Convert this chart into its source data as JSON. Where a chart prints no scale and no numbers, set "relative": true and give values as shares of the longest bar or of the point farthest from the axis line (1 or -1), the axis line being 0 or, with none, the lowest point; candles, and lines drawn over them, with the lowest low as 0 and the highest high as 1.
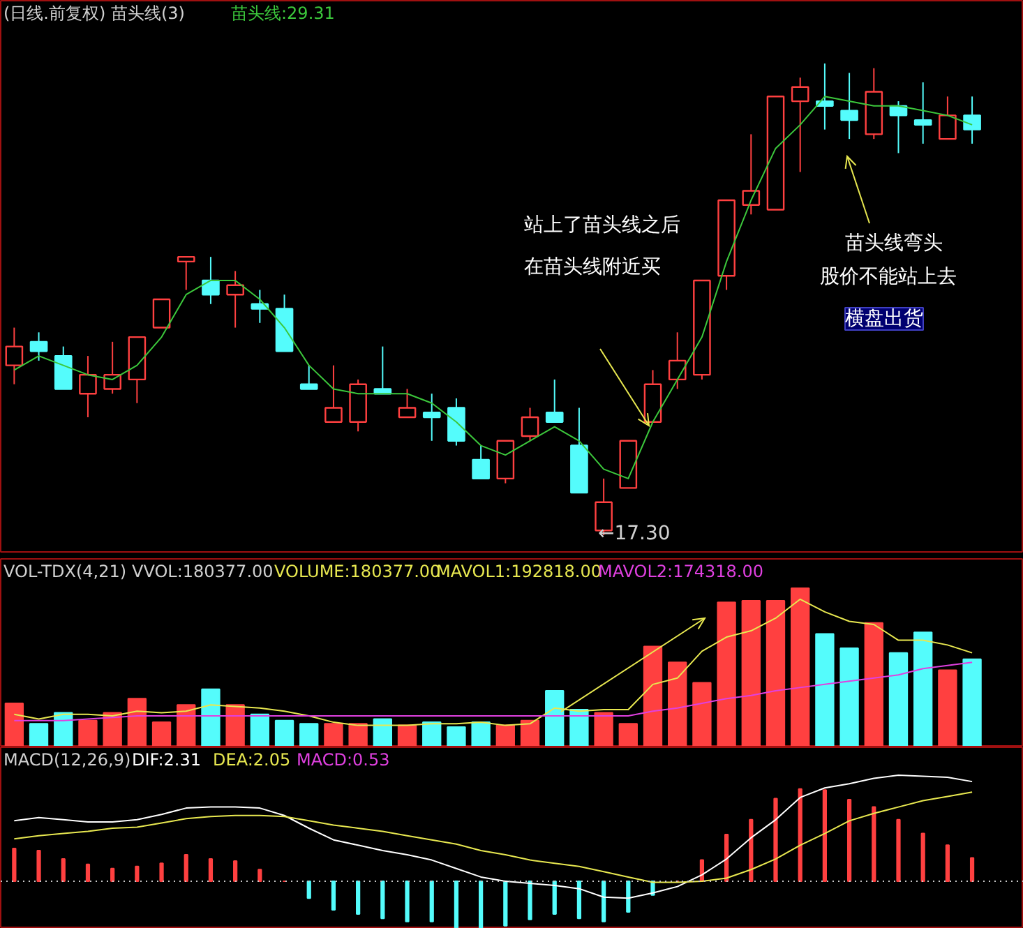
{
  "chart_data": [
    {
      "type": "candlestick",
      "title": "(日线.前复权) 苗头线(3)",
      "relative": true,
      "categories": [
        null,
        null,
        null,
        null,
        null,
        null,
        null,
        null,
        null,
        null,
        null,
        null,
        null,
        null,
        null,
        null,
        null,
        null,
        null,
        null,
        null,
        null,
        null,
        null,
        null,
        null,
        null,
        null,
        null,
        null,
        null,
        null,
        null,
        null,
        null,
        null,
        null,
        null,
        null,
        null
      ],
      "ohlc": [
        [
          0.36,
          0.44,
          0.32,
          0.4
        ],
        [
          0.41,
          0.43,
          0.37,
          0.39
        ],
        [
          0.38,
          0.4,
          0.31,
          0.31
        ],
        [
          0.3,
          0.38,
          0.25,
          0.34
        ],
        [
          0.31,
          0.41,
          0.3,
          0.34
        ],
        [
          0.33,
          0.42,
          0.28,
          0.42
        ],
        [
          0.44,
          0.5,
          0.44,
          0.5
        ],
        [
          0.58,
          0.59,
          0.52,
          0.59
        ],
        [
          0.54,
          0.59,
          0.49,
          0.51
        ],
        [
          0.51,
          0.56,
          0.44,
          0.53
        ],
        [
          0.49,
          0.52,
          0.45,
          0.48
        ],
        [
          0.48,
          0.51,
          0.39,
          0.39
        ],
        [
          0.32,
          0.36,
          0.31,
          0.31
        ],
        [
          0.24,
          0.36,
          0.24,
          0.27
        ],
        [
          0.24,
          0.33,
          0.22,
          0.32
        ],
        [
          0.31,
          0.4,
          0.3,
          0.3
        ],
        [
          0.25,
          0.31,
          0.25,
          0.27
        ],
        [
          0.26,
          0.3,
          0.2,
          0.25
        ],
        [
          0.27,
          0.29,
          0.19,
          0.2
        ],
        [
          0.16,
          0.19,
          0.12,
          0.12
        ],
        [
          0.12,
          0.2,
          0.11,
          0.2
        ],
        [
          0.21,
          0.27,
          0.2,
          0.25
        ],
        [
          0.26,
          0.33,
          0.24,
          0.24
        ],
        [
          0.19,
          0.27,
          0.09,
          0.09
        ],
        [
          0.01,
          0.12,
          0,
          0.07
        ],
        [
          0.1,
          0.2,
          0.1,
          0.2
        ],
        [
          0.24,
          0.35,
          0.24,
          0.32
        ],
        [
          0.33,
          0.43,
          0.31,
          0.37
        ],
        [
          0.34,
          0.54,
          0.33,
          0.54
        ],
        [
          0.55,
          0.71,
          0.52,
          0.71
        ],
        [
          0.7,
          0.85,
          0.68,
          0.73
        ],
        [
          0.69,
          0.93,
          0.69,
          0.93
        ],
        [
          0.92,
          0.97,
          0.77,
          0.95
        ],
        [
          0.92,
          1,
          0.86,
          0.91
        ],
        [
          0.9,
          0.98,
          0.84,
          0.88
        ],
        [
          0.85,
          0.99,
          0.84,
          0.94
        ],
        [
          0.91,
          0.92,
          0.81,
          0.89
        ],
        [
          0.88,
          0.96,
          0.83,
          0.87
        ],
        [
          0.84,
          0.93,
          0.84,
          0.89
        ],
        [
          0.89,
          0.93,
          0.83,
          0.86
        ]
      ],
      "colors": [
        "#ff4040",
        "#54fcfc",
        "#54fcfc",
        "#ff4040",
        "#ff4040",
        "#ff4040",
        "#ff4040",
        "#ff4040",
        "#54fcfc",
        "#ff4040",
        "#54fcfc",
        "#54fcfc",
        "#54fcfc",
        "#ff4040",
        "#ff4040",
        "#54fcfc",
        "#ff4040",
        "#54fcfc",
        "#54fcfc",
        "#54fcfc",
        "#ff4040",
        "#ff4040",
        "#54fcfc",
        "#54fcfc",
        "#ff4040",
        "#ff4040",
        "#ff4040",
        "#ff4040",
        "#ff4040",
        "#ff4040",
        "#ff4040",
        "#ff4040",
        "#ff4040",
        "#54fcfc",
        "#54fcfc",
        "#ff4040",
        "#54fcfc",
        "#54fcfc",
        "#ff4040",
        "#54fcfc"
      ],
      "series": [
        {
          "type": "line",
          "name": "苗头线:29.31",
          "color": "#3cc83c",
          "values": [
            0.35,
            0.38,
            0.36,
            0.34,
            0.33,
            0.36,
            0.42,
            0.51,
            0.54,
            0.54,
            0.5,
            0.44,
            0.36,
            0.31,
            0.3,
            0.3,
            0.3,
            0.28,
            0.24,
            0.19,
            0.17,
            0.2,
            0.23,
            0.2,
            0.14,
            0.12,
            0.24,
            0.33,
            0.42,
            0.58,
            0.71,
            0.82,
            0.87,
            0.93,
            0.92,
            0.91,
            0.91,
            0.9,
            0.89,
            0.87
          ]
        }
      ],
      "tick_labels": false,
      "annotations": [
        "站上了苗头线之后",
        "在苗头线附近买",
        "苗头线弯头",
        "股价不能站上去",
        "横盘出货",
        "←17.30"
      ]
    },
    {
      "type": "bar",
      "title": "VOL-TDX(4,21)",
      "relative": true,
      "categories": [
        null,
        null,
        null,
        null,
        null,
        null,
        null,
        null,
        null,
        null,
        null,
        null,
        null,
        null,
        null,
        null,
        null,
        null,
        null,
        null,
        null,
        null,
        null,
        null,
        null,
        null,
        null,
        null,
        null,
        null,
        null,
        null,
        null,
        null,
        null,
        null,
        null,
        null,
        null,
        null
      ],
      "series": [
        {
          "type": "bar",
          "values": [
            0.27,
            0.14,
            0.21,
            0.16,
            0.21,
            0.3,
            0.15,
            0.26,
            0.36,
            0.26,
            0.2,
            0.16,
            0.14,
            0.14,
            0.14,
            0.17,
            0.13,
            0.15,
            0.12,
            0.15,
            0.13,
            0.16,
            0.35,
            0.23,
            0.21,
            0.14,
            0.63,
            0.53,
            0.4,
            0.91,
            0.92,
            0.92,
            1,
            0.71,
            0.62,
            0.78,
            0.59,
            0.72,
            0.48,
            0.55
          ],
          "colors": [
            "#ff4040",
            "#54fcfc",
            "#54fcfc",
            "#ff4040",
            "#ff4040",
            "#ff4040",
            "#ff4040",
            "#ff4040",
            "#54fcfc",
            "#ff4040",
            "#54fcfc",
            "#54fcfc",
            "#54fcfc",
            "#ff4040",
            "#ff4040",
            "#54fcfc",
            "#ff4040",
            "#54fcfc",
            "#54fcfc",
            "#54fcfc",
            "#ff4040",
            "#ff4040",
            "#54fcfc",
            "#54fcfc",
            "#ff4040",
            "#ff4040",
            "#ff4040",
            "#ff4040",
            "#ff4040",
            "#ff4040",
            "#ff4040",
            "#ff4040",
            "#ff4040",
            "#54fcfc",
            "#54fcfc",
            "#ff4040",
            "#54fcfc",
            "#54fcfc",
            "#ff4040",
            "#54fcfc"
          ]
        },
        {
          "type": "line",
          "name": "MAVOL1:192818.00",
          "color": "#e8e850",
          "values": [
            0.2,
            0.17,
            0.2,
            0.2,
            0.19,
            0.22,
            0.21,
            0.22,
            0.26,
            0.25,
            0.24,
            0.22,
            0.19,
            0.15,
            0.13,
            0.13,
            0.13,
            0.14,
            0.14,
            0.15,
            0.13,
            0.14,
            0.24,
            0.22,
            0.23,
            0.23,
            0.39,
            0.43,
            0.6,
            0.69,
            0.73,
            0.81,
            0.93,
            0.85,
            0.79,
            0.77,
            0.67,
            0.67,
            0.64,
            0.59
          ]
        },
        {
          "type": "line",
          "name": "MAVOL2:174318.00",
          "color": "#e040e0",
          "values": [
            0.16,
            0.16,
            0.16,
            0.17,
            0.18,
            0.19,
            0.19,
            0.19,
            0.19,
            0.19,
            0.19,
            0.19,
            0.19,
            0.19,
            0.19,
            0.19,
            0.19,
            0.19,
            0.19,
            0.19,
            0.19,
            0.19,
            0.19,
            0.19,
            0.19,
            0.19,
            0.22,
            0.24,
            0.27,
            0.3,
            0.32,
            0.35,
            0.37,
            0.39,
            0.41,
            0.43,
            0.45,
            0.49,
            0.51,
            0.53
          ]
        }
      ],
      "tick_labels": false,
      "annotations": [
        "VVOL:180377.00",
        "VOLUME:180377.00"
      ]
    },
    {
      "type": "bar",
      "title": "MACD(12,26,9)",
      "relative": true,
      "categories": [
        null,
        null,
        null,
        null,
        null,
        null,
        null,
        null,
        null,
        null,
        null,
        null,
        null,
        null,
        null,
        null,
        null,
        null,
        null,
        null,
        null,
        null,
        null,
        null,
        null,
        null,
        null,
        null,
        null,
        null,
        null,
        null,
        null,
        null,
        null,
        null,
        null,
        null,
        null,
        null
      ],
      "series": [
        {
          "type": "bar",
          "values": [
            0.31,
            0.29,
            0.21,
            0.16,
            0.12,
            0.14,
            0.17,
            0.25,
            0.21,
            0.19,
            0.11,
            0,
            -0.16,
            -0.27,
            -0.31,
            -0.35,
            -0.38,
            -0.38,
            -0.44,
            -0.47,
            -0.42,
            -0.36,
            -0.31,
            -0.35,
            -0.38,
            -0.29,
            -0.13,
            0,
            0.2,
            0.44,
            0.58,
            0.78,
            0.87,
            0.86,
            0.77,
            0.7,
            0.58,
            0.45,
            0.34,
            0.22
          ],
          "colors": [
            "#ff4040",
            "#ff4040",
            "#ff4040",
            "#ff4040",
            "#ff4040",
            "#ff4040",
            "#ff4040",
            "#ff4040",
            "#ff4040",
            "#ff4040",
            "#ff4040",
            "#ff4040",
            "#54fcfc",
            "#54fcfc",
            "#54fcfc",
            "#54fcfc",
            "#54fcfc",
            "#54fcfc",
            "#54fcfc",
            "#54fcfc",
            "#54fcfc",
            "#54fcfc",
            "#54fcfc",
            "#54fcfc",
            "#54fcfc",
            "#54fcfc",
            "#54fcfc",
            "#ff4040",
            "#ff4040",
            "#ff4040",
            "#ff4040",
            "#ff4040",
            "#ff4040",
            "#ff4040",
            "#ff4040",
            "#ff4040",
            "#ff4040",
            "#ff4040",
            "#ff4040",
            "#ff4040"
          ]
        },
        {
          "type": "line",
          "name": "DIF:2.31",
          "color": "#ffffff",
          "values": [
            0.57,
            0.6,
            0.58,
            0.56,
            0.56,
            0.58,
            0.63,
            0.69,
            0.7,
            0.7,
            0.69,
            0.62,
            0.5,
            0.39,
            0.34,
            0.29,
            0.25,
            0.2,
            0.12,
            0.04,
            0,
            -0.02,
            -0.04,
            -0.07,
            -0.15,
            -0.16,
            -0.11,
            -0.05,
            0.06,
            0.21,
            0.41,
            0.58,
            0.79,
            0.88,
            0.92,
            0.97,
            1,
            0.99,
            0.98,
            0.94
          ]
        },
        {
          "type": "line",
          "name": "DEA:2.05",
          "color": "#e8e850",
          "values": [
            0.4,
            0.43,
            0.45,
            0.47,
            0.5,
            0.51,
            0.55,
            0.59,
            0.61,
            0.62,
            0.62,
            0.61,
            0.57,
            0.53,
            0.5,
            0.47,
            0.43,
            0.39,
            0.35,
            0.29,
            0.25,
            0.2,
            0.17,
            0.14,
            0.09,
            0.04,
            -0.01,
            -0.01,
            0,
            0.03,
            0.11,
            0.21,
            0.34,
            0.45,
            0.57,
            0.64,
            0.7,
            0.76,
            0.8,
            0.84
          ]
        }
      ],
      "tick_labels": false,
      "ref_lines": [
        {
          "axis": "y",
          "value": 0,
          "color": "#c8c8c8",
          "line_style": "dotted"
        }
      ],
      "annotations": [
        "MACD:0.53"
      ]
    }
  ]
}
